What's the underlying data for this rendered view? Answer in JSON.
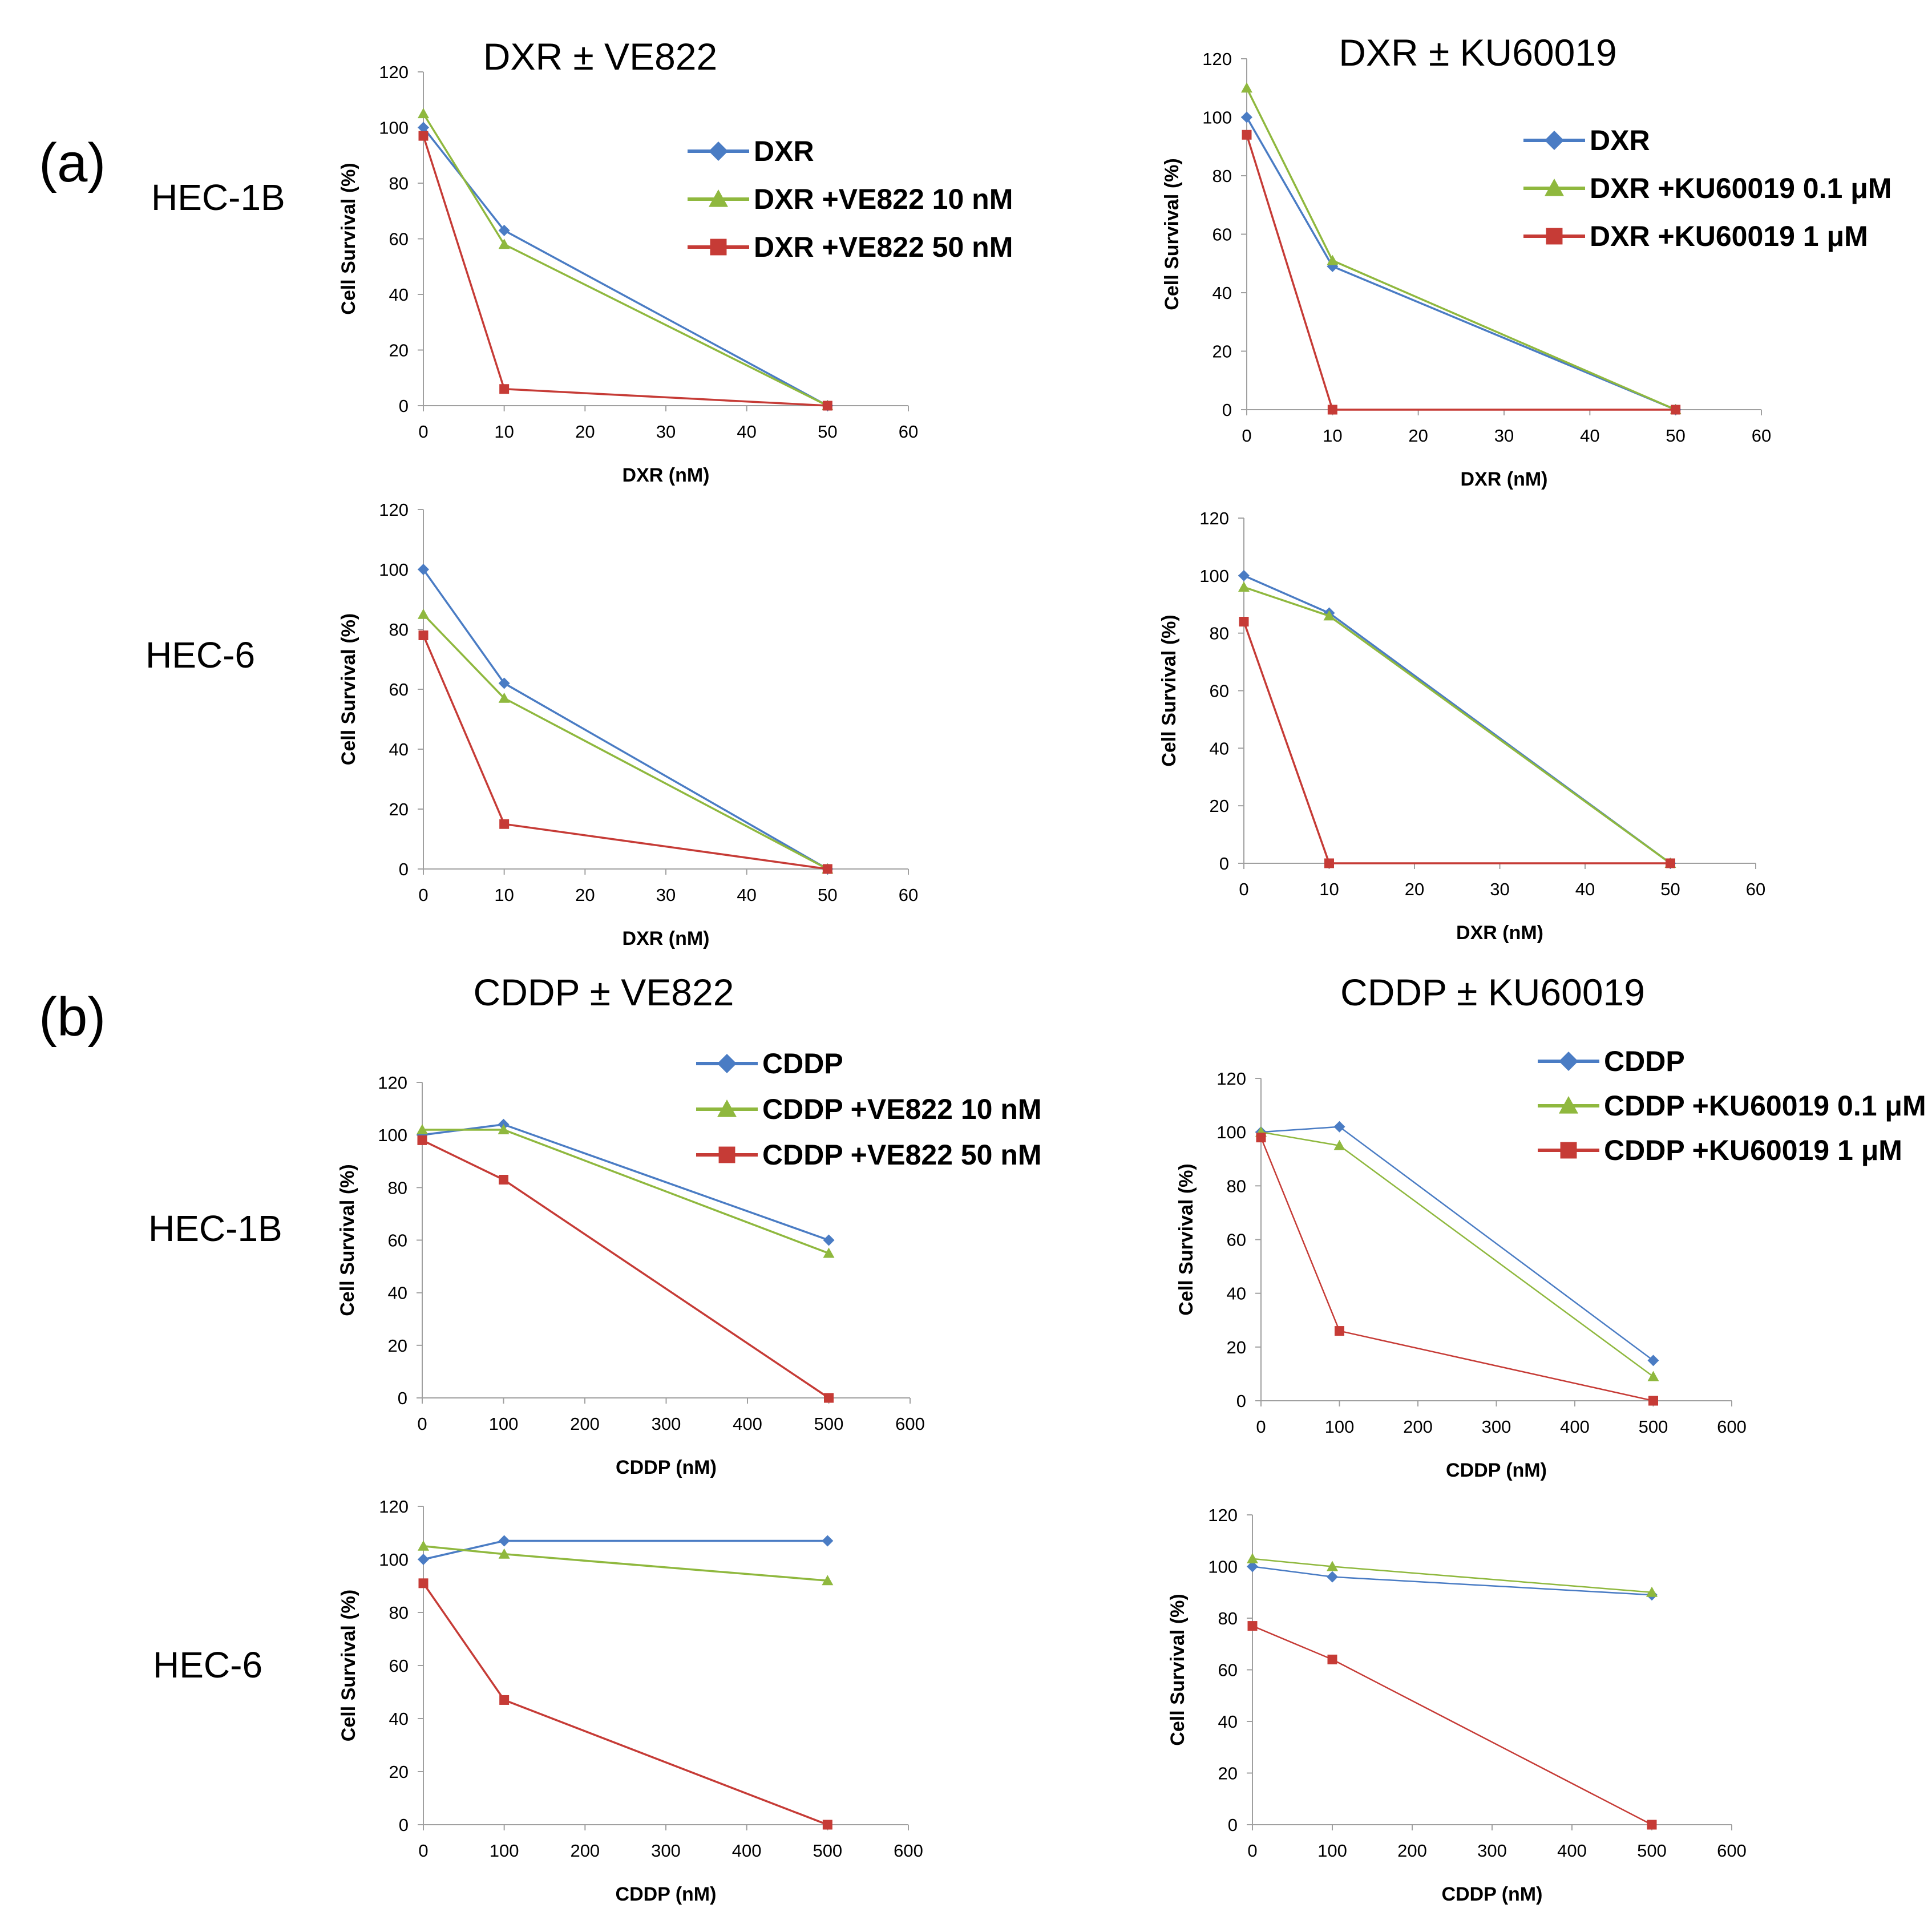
{
  "panels": {
    "a": "(a)",
    "b": "(b)"
  },
  "row_labels": {
    "a_top": "HEC-1B",
    "a_bottom": "HEC-6",
    "b_top": "HEC-1B",
    "b_bottom": "HEC-6"
  },
  "column_titles": {
    "a_left": "DXR ± VE822",
    "a_right": "DXR ±  KU60019",
    "b_left": "CDDP ±  VE822",
    "b_right": "CDDP ± KU60019"
  },
  "colors": {
    "blue": "#4a7cc4",
    "green": "#8fb83e",
    "red": "#c63b36"
  },
  "chart_data": [
    {
      "type": "line",
      "panel": "a",
      "cell_line": "HEC-1B",
      "title": "",
      "xlabel": "DXR (nM)",
      "ylabel": "Cell Survival (%)",
      "x": [
        0,
        10,
        50
      ],
      "xlim": [
        0,
        60
      ],
      "ylim": [
        0,
        120
      ],
      "xticks": [
        0,
        10,
        20,
        30,
        40,
        50,
        60
      ],
      "yticks": [
        0,
        20,
        40,
        60,
        80,
        100,
        120
      ],
      "legend": "top-right",
      "series": [
        {
          "name": "DXR",
          "color": "blue",
          "marker": "diamond",
          "values": [
            100,
            63,
            0
          ]
        },
        {
          "name": "DXR +VE822 10 nM",
          "color": "green",
          "marker": "triangle",
          "values": [
            105,
            58,
            0
          ]
        },
        {
          "name": "DXR +VE822 50 nM",
          "color": "red",
          "marker": "square",
          "values": [
            97,
            6,
            0
          ]
        }
      ]
    },
    {
      "type": "line",
      "panel": "a",
      "cell_line": "HEC-1B",
      "title": "",
      "xlabel": "DXR (nM)",
      "ylabel": "Cell Survival (%)",
      "x": [
        0,
        10,
        50
      ],
      "xlim": [
        0,
        60
      ],
      "ylim": [
        0,
        120
      ],
      "xticks": [
        0,
        10,
        20,
        30,
        40,
        50,
        60
      ],
      "yticks": [
        0,
        20,
        40,
        60,
        80,
        100,
        120
      ],
      "legend": "top-right",
      "series": [
        {
          "name": "DXR",
          "color": "blue",
          "marker": "diamond",
          "values": [
            100,
            49,
            0
          ]
        },
        {
          "name": "DXR +KU60019 0.1 μM",
          "color": "green",
          "marker": "triangle",
          "values": [
            110,
            51,
            0
          ]
        },
        {
          "name": "DXR +KU60019 1 μM",
          "color": "red",
          "marker": "square",
          "values": [
            94,
            0,
            0
          ]
        }
      ]
    },
    {
      "type": "line",
      "panel": "a",
      "cell_line": "HEC-6",
      "title": "",
      "xlabel": "DXR (nM)",
      "ylabel": "Cell Survival (%)",
      "x": [
        0,
        10,
        50
      ],
      "xlim": [
        0,
        60
      ],
      "ylim": [
        0,
        120
      ],
      "xticks": [
        0,
        10,
        20,
        30,
        40,
        50,
        60
      ],
      "yticks": [
        0,
        20,
        40,
        60,
        80,
        100,
        120
      ],
      "legend": "",
      "series": [
        {
          "name": "DXR",
          "color": "blue",
          "marker": "diamond",
          "values": [
            100,
            62,
            0
          ]
        },
        {
          "name": "DXR +VE822 10 nM",
          "color": "green",
          "marker": "triangle",
          "values": [
            85,
            57,
            0
          ]
        },
        {
          "name": "DXR +VE822 50 nM",
          "color": "red",
          "marker": "square",
          "values": [
            78,
            15,
            0
          ]
        }
      ]
    },
    {
      "type": "line",
      "panel": "a",
      "cell_line": "HEC-6",
      "title": "",
      "xlabel": "DXR (nM)",
      "ylabel": "Cell Survival (%)",
      "x": [
        0,
        10,
        50
      ],
      "xlim": [
        0,
        60
      ],
      "ylim": [
        0,
        120
      ],
      "xticks": [
        0,
        10,
        20,
        30,
        40,
        50,
        60
      ],
      "yticks": [
        0,
        20,
        40,
        60,
        80,
        100,
        120
      ],
      "legend": "",
      "series": [
        {
          "name": "DXR",
          "color": "blue",
          "marker": "diamond",
          "values": [
            100,
            87,
            0
          ]
        },
        {
          "name": "DXR +KU60019 0.1 μM",
          "color": "green",
          "marker": "triangle",
          "values": [
            96,
            86,
            0
          ]
        },
        {
          "name": "DXR +KU60019 1 μM",
          "color": "red",
          "marker": "square",
          "values": [
            84,
            0,
            0
          ]
        }
      ]
    },
    {
      "type": "line",
      "panel": "b",
      "cell_line": "HEC-1B",
      "title": "",
      "xlabel": "CDDP (nM)",
      "ylabel": "Cell Survival (%)",
      "x": [
        0,
        100,
        500
      ],
      "xlim": [
        0,
        600
      ],
      "ylim": [
        0,
        120
      ],
      "xticks": [
        0,
        100,
        200,
        300,
        400,
        500,
        600
      ],
      "yticks": [
        0,
        20,
        40,
        60,
        80,
        100,
        120
      ],
      "legend": "top-right",
      "series": [
        {
          "name": "CDDP",
          "color": "blue",
          "marker": "diamond",
          "values": [
            100,
            104,
            60
          ]
        },
        {
          "name": "CDDP +VE822 10 nM",
          "color": "green",
          "marker": "triangle",
          "values": [
            102,
            102,
            55
          ]
        },
        {
          "name": "CDDP +VE822 50 nM",
          "color": "red",
          "marker": "square",
          "values": [
            98,
            83,
            0
          ]
        }
      ]
    },
    {
      "type": "line",
      "panel": "b",
      "cell_line": "HEC-1B",
      "title": "",
      "xlabel": "CDDP (nM)",
      "ylabel": "Cell Survival (%)",
      "x": [
        0,
        100,
        500
      ],
      "xlim": [
        0,
        600
      ],
      "ylim": [
        0,
        120
      ],
      "xticks": [
        0,
        100,
        200,
        300,
        400,
        500,
        600
      ],
      "yticks": [
        0,
        20,
        40,
        60,
        80,
        100,
        120
      ],
      "legend": "top-right",
      "series": [
        {
          "name": "CDDP",
          "color": "blue",
          "marker": "diamond",
          "values": [
            100,
            102,
            15
          ]
        },
        {
          "name": "CDDP +KU60019 0.1 μM",
          "color": "green",
          "marker": "triangle",
          "values": [
            100,
            95,
            9
          ]
        },
        {
          "name": "CDDP +KU60019 1 μM",
          "color": "red",
          "marker": "square",
          "values": [
            98,
            26,
            0
          ]
        }
      ]
    },
    {
      "type": "line",
      "panel": "b",
      "cell_line": "HEC-6",
      "title": "",
      "xlabel": "CDDP (nM)",
      "ylabel": "Cell Survival (%)",
      "x": [
        0,
        100,
        500
      ],
      "xlim": [
        0,
        600
      ],
      "ylim": [
        0,
        120
      ],
      "xticks": [
        0,
        100,
        200,
        300,
        400,
        500,
        600
      ],
      "yticks": [
        0,
        20,
        40,
        60,
        80,
        100,
        120
      ],
      "legend": "",
      "series": [
        {
          "name": "CDDP",
          "color": "blue",
          "marker": "diamond",
          "values": [
            100,
            107,
            107
          ]
        },
        {
          "name": "CDDP +VE822 10 nM",
          "color": "green",
          "marker": "triangle",
          "values": [
            105,
            102,
            92
          ]
        },
        {
          "name": "CDDP +VE822 50 nM",
          "color": "red",
          "marker": "square",
          "values": [
            91,
            47,
            0
          ]
        }
      ]
    },
    {
      "type": "line",
      "panel": "b",
      "cell_line": "HEC-6",
      "title": "",
      "xlabel": "CDDP (nM)",
      "ylabel": "Cell Survival (%)",
      "x": [
        0,
        100,
        500
      ],
      "xlim": [
        0,
        600
      ],
      "ylim": [
        0,
        120
      ],
      "xticks": [
        0,
        100,
        200,
        300,
        400,
        500,
        600
      ],
      "yticks": [
        0,
        20,
        40,
        60,
        80,
        100,
        120
      ],
      "legend": "",
      "series": [
        {
          "name": "CDDP",
          "color": "blue",
          "marker": "diamond",
          "values": [
            100,
            96,
            89
          ]
        },
        {
          "name": "CDDP +KU60019 0.1 μM",
          "color": "green",
          "marker": "triangle",
          "values": [
            103,
            100,
            90
          ]
        },
        {
          "name": "CDDP +KU60019 1 μM",
          "color": "red",
          "marker": "square",
          "values": [
            77,
            64,
            0
          ]
        }
      ]
    }
  ]
}
